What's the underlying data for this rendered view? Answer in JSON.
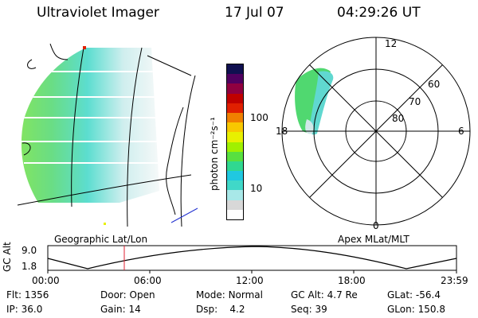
{
  "header": {
    "instrument": "Ultraviolet Imager",
    "date": "17 Jul 07",
    "time": "04:29:26 UT"
  },
  "colorbar": {
    "label": "photon cm⁻²s⁻¹",
    "ticks": [
      "100",
      "10"
    ],
    "colors": [
      "#ffffff",
      "#d8d8d8",
      "#a8e8e8",
      "#40d8c8",
      "#20c8e0",
      "#30d890",
      "#58e040",
      "#a0f000",
      "#e8f000",
      "#f8c800",
      "#f08000",
      "#e02000",
      "#c00000",
      "#900040",
      "#500060",
      "#101050"
    ]
  },
  "left_panel": {
    "label": "Geographic Lat/Lon"
  },
  "right_panel": {
    "label": "Apex MLat/MLT",
    "mlt_labels": [
      "12",
      "18",
      "6",
      "0"
    ],
    "mlat_labels": [
      "60",
      "70",
      "80"
    ]
  },
  "altitude_plot": {
    "ylabel": "GC Alt",
    "yticks": [
      "9.0",
      "1.8"
    ],
    "xticks": [
      "00:00",
      "06:00",
      "12:00",
      "18:00",
      "23:59"
    ],
    "marker_time": "04:29:26"
  },
  "info": {
    "flt_label": "Flt:",
    "flt_value": "1356",
    "ip_label": "IP:",
    "ip_value": "36.0",
    "door_label": "Door:",
    "door_value": "Open",
    "gain_label": "Gain:",
    "gain_value": "14",
    "mode_label": "Mode:",
    "mode_value": "Normal",
    "dsp_label": "Dsp:",
    "dsp_value": "4.2",
    "gcalt_label": "GC Alt:",
    "gcalt_value": "4.7 Re",
    "seq_label": "Seq:",
    "seq_value": "39",
    "glat_label": "GLat:",
    "glat_value": "-56.4",
    "glon_label": "GLon:",
    "glon_value": "150.8"
  }
}
